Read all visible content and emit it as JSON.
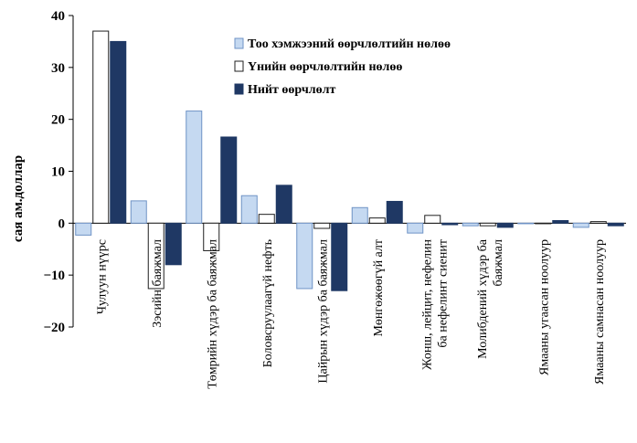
{
  "chart_data": {
    "type": "bar",
    "ylabel": "сая ам.доллар",
    "ylim": [
      -20,
      40
    ],
    "yticks": [
      -20,
      -10,
      0,
      10,
      20,
      30,
      40
    ],
    "grid": false,
    "legend_position": "top-right",
    "categories": [
      "Чулуун нүүрс",
      "Зэсийн баяжмал",
      "Төмрийн хүдэр ба баяжмал",
      "Боловсруулаагүй нефть",
      "Цайрын хүдэр ба баяжмал",
      "Мөнгөжөөгүй алт",
      "Жонш, лейцит, нефелин ба нефелинт сиенит",
      "Молибдений хүдэр ба баяжмал",
      "Ямааны угаасан ноолуур",
      "Ямааны самнасан ноолуур"
    ],
    "series": [
      {
        "name": "Тоо хэмжээний өөрчлөлтийн нөлөө",
        "color": "#c5d9f1",
        "stroke": "#6f93c6",
        "values": [
          -2.3,
          4.3,
          21.6,
          5.3,
          -12.6,
          3.0,
          -1.9,
          -0.5,
          0.0,
          -0.8
        ]
      },
      {
        "name": "Үнийн өөрчлөлтийн нөлөө",
        "color": "#ffffff",
        "stroke": "#1f1f1f",
        "values": [
          37.0,
          -12.6,
          -5.3,
          1.7,
          -1.0,
          1.0,
          1.5,
          -0.5,
          0.0,
          0.3
        ]
      },
      {
        "name": "Нийт өөрчлөлт",
        "color": "#1f3864",
        "stroke": "#1f3864",
        "values": [
          35.0,
          -8.0,
          16.6,
          7.3,
          -13.0,
          4.2,
          -0.3,
          -0.8,
          0.5,
          -0.5
        ]
      }
    ]
  }
}
